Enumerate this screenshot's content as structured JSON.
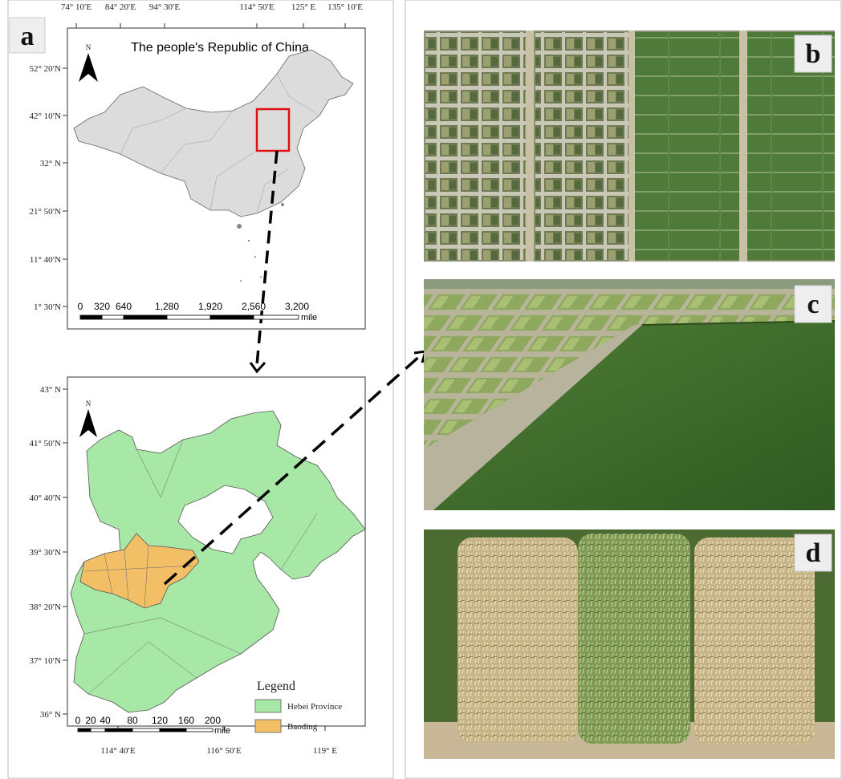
{
  "panels": {
    "a": {
      "label": "a",
      "china_map": {
        "title": "The people's Republic of China",
        "north": "N",
        "x_labels": [
          "74° 10′E",
          "84° 20′E",
          "94° 30′E",
          "114° 50′E",
          "125° E",
          "135° 10′E"
        ],
        "y_labels": [
          "52° 20′N",
          "42° 10′N",
          "32° N",
          "21° 50′N",
          "11° 40′N",
          "1° 30′N"
        ],
        "scale": {
          "labels": [
            "0",
            "320",
            "640",
            "1,280",
            "1,920",
            "2,560",
            "3,200"
          ],
          "unit": "mile"
        }
      },
      "hebei_map": {
        "north": "N",
        "x_labels": [
          "114° 40′E",
          "116° 50′E",
          "119° E"
        ],
        "y_labels": [
          "43° N",
          "41° 50′N",
          "40° 40′N",
          "39° 30′N",
          "38° 20′N",
          "37° 10′N",
          "36° N"
        ],
        "scale": {
          "labels": [
            "0",
            "20",
            "40",
            "80",
            "120",
            "160",
            "200"
          ],
          "unit": "mile"
        },
        "legend": {
          "title": "Legend",
          "items": [
            "Hebei Province",
            "Baoding"
          ]
        }
      }
    },
    "b": {
      "label": "b"
    },
    "c": {
      "label": "c"
    },
    "d": {
      "label": "d"
    }
  }
}
